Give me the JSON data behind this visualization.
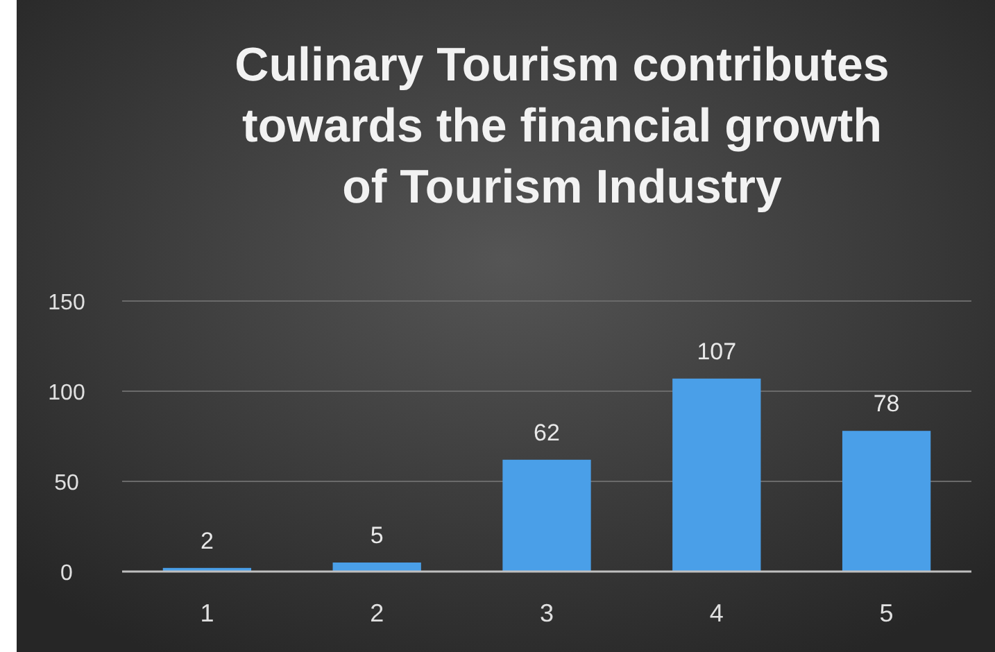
{
  "chart_data": {
    "type": "bar",
    "title": "Culinary Tourism contributes towards the financial growth of Tourism Industry",
    "categories": [
      "1",
      "2",
      "3",
      "4",
      "5"
    ],
    "values": [
      2,
      5,
      62,
      107,
      78
    ],
    "color": "#4a9fe8",
    "ylim": [
      0,
      150
    ],
    "yticks": [
      0,
      50,
      100,
      150
    ],
    "grid": "y",
    "data_labels": true
  }
}
